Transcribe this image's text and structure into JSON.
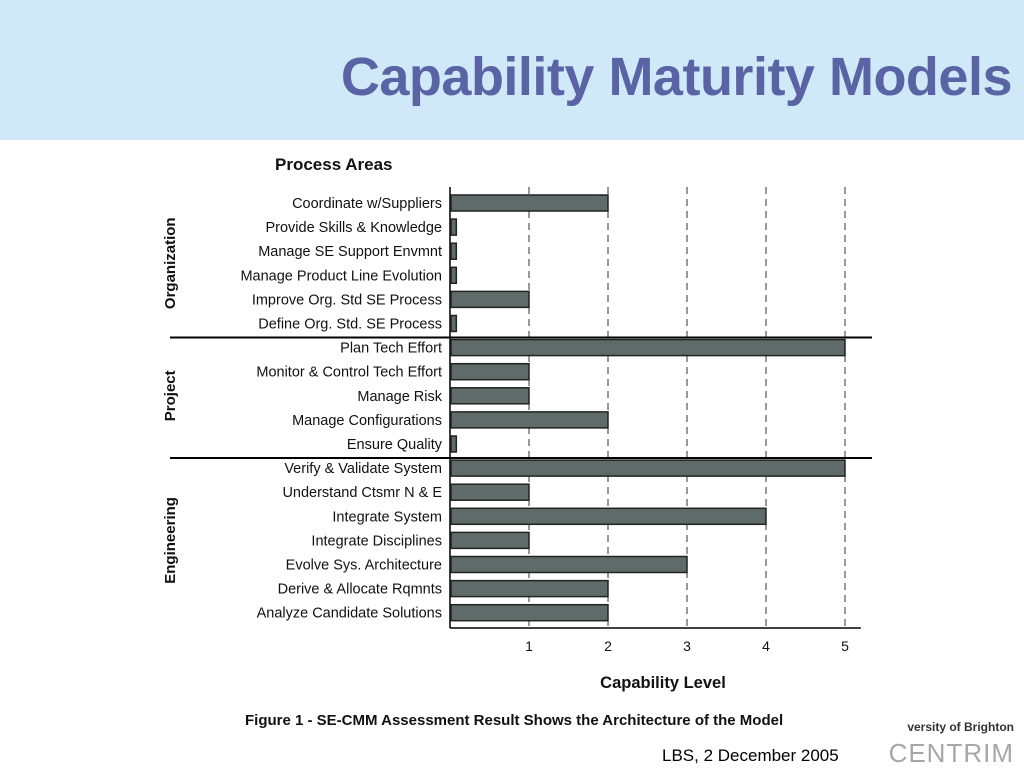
{
  "slide": {
    "title": "Capability Maturity Models"
  },
  "footer": {
    "date": "LBS, 2 December 2005",
    "university": "versity of Brighton",
    "centre": "CENTRIM"
  },
  "chart_data": {
    "type": "bar",
    "orientation": "horizontal",
    "title": "Process Areas",
    "xlabel": "Capability Level",
    "caption": "Figure 1 - SE-CMM Assessment Result Shows the Architecture of the Model",
    "xlim": [
      0,
      5.2
    ],
    "xticks": [
      1,
      2,
      3,
      4,
      5
    ],
    "grid": "vertical-dashed",
    "groups": [
      {
        "name": "Organization",
        "categories": [
          "Coordinate w/Suppliers",
          "Provide Skills & Knowledge",
          "Manage SE Support Envmnt",
          "Manage Product Line Evolution",
          "Improve Org. Std SE Process",
          "Define Org. Std. SE Process"
        ],
        "values": [
          2,
          0.08,
          0.08,
          0.08,
          1,
          0.08
        ]
      },
      {
        "name": "Project",
        "categories": [
          "Plan Tech Effort",
          "Monitor & Control Tech Effort",
          "Manage Risk",
          "Manage Configurations",
          "Ensure Quality"
        ],
        "values": [
          5,
          1,
          1,
          2,
          0.08
        ]
      },
      {
        "name": "Engineering",
        "categories": [
          "Verify & Validate System",
          "Understand Ctsmr N & E",
          "Integrate System",
          "Integrate Disciplines",
          "Evolve Sys. Architecture",
          "Derive & Allocate Rqmnts",
          "Analyze Candidate Solutions"
        ],
        "values": [
          5,
          1,
          4,
          1,
          3,
          2,
          2
        ]
      }
    ],
    "colors": {
      "bar_fill": "#5f6b6b",
      "bar_stroke": "#222222",
      "text": "#111111"
    }
  }
}
